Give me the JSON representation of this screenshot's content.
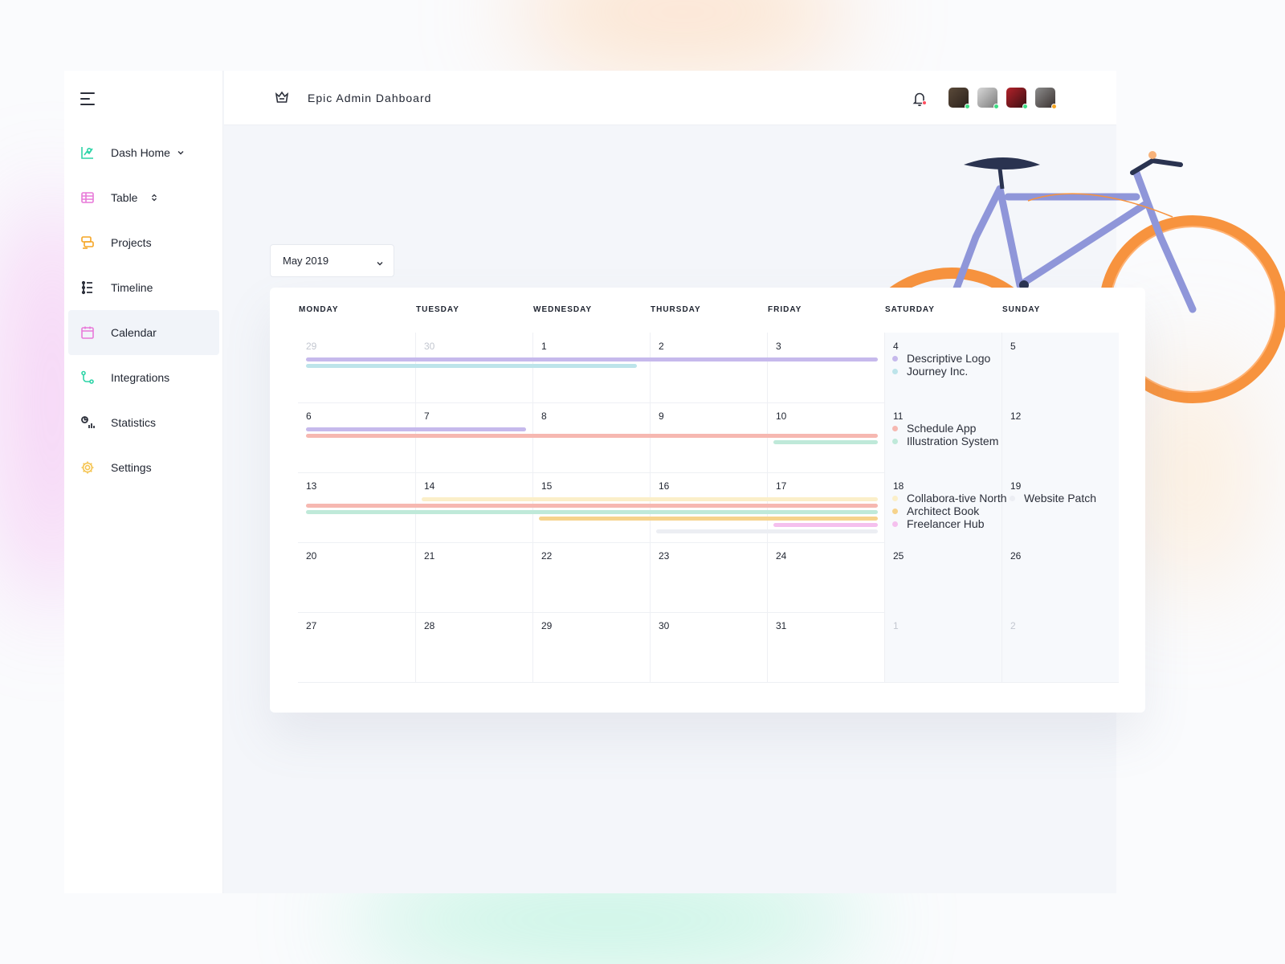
{
  "app": {
    "title": "Epic Admin Dahboard"
  },
  "sidebar": {
    "items": [
      {
        "label": "Dash Home",
        "icon": "chart-icon",
        "color": "#2dd4a7",
        "caret": "chevron-down"
      },
      {
        "label": "Table",
        "icon": "table-icon",
        "color": "#e879d9",
        "caret": "chevron-updown"
      },
      {
        "label": "Projects",
        "icon": "projects-icon",
        "color": "#f5a524"
      },
      {
        "label": "Timeline",
        "icon": "timeline-icon",
        "color": "#2b2f3a"
      },
      {
        "label": "Calendar",
        "icon": "calendar-icon",
        "color": "#e879d9",
        "active": true
      },
      {
        "label": "Integrations",
        "icon": "integrations-icon",
        "color": "#2dd4a7"
      },
      {
        "label": "Statistics",
        "icon": "statistics-icon",
        "color": "#2b2f3a"
      },
      {
        "label": "Settings",
        "icon": "gear-icon",
        "color": "#f5c451"
      }
    ]
  },
  "header": {
    "notifications_dot_color": "#ff4d5e",
    "avatars": [
      {
        "status_color": "#3ddc84"
      },
      {
        "status_color": "#3ddc84"
      },
      {
        "status_color": "#3ddc84"
      },
      {
        "status_color": "#f5a524"
      }
    ]
  },
  "calendar": {
    "selected_month": "May 2019",
    "weekdays": [
      "MONDAY",
      "TUESDAY",
      "WEDNESDAY",
      "THURSDAY",
      "FRIDAY",
      "SATURDAY",
      "SUNDAY"
    ],
    "weeks": [
      {
        "days": [
          {
            "n": "29",
            "muted": true
          },
          {
            "n": "30",
            "muted": true
          },
          {
            "n": "1"
          },
          {
            "n": "2"
          },
          {
            "n": "3"
          },
          {
            "n": "4"
          },
          {
            "n": "5"
          }
        ],
        "legend_sat": [
          {
            "label": "Descriptive Logo",
            "color": "#c6b9ec"
          },
          {
            "label": "Journey Inc.",
            "color": "#bde4ea"
          }
        ],
        "legend_sun": []
      },
      {
        "days": [
          {
            "n": "6"
          },
          {
            "n": "7"
          },
          {
            "n": "8"
          },
          {
            "n": "9"
          },
          {
            "n": "10"
          },
          {
            "n": "11"
          },
          {
            "n": "12"
          }
        ],
        "legend_sat": [
          {
            "label": "Schedule App",
            "color": "#f6b8b1"
          },
          {
            "label": "Illustration System",
            "color": "#bfe9d9"
          }
        ],
        "legend_sun": []
      },
      {
        "days": [
          {
            "n": "13"
          },
          {
            "n": "14"
          },
          {
            "n": "15"
          },
          {
            "n": "16"
          },
          {
            "n": "17"
          },
          {
            "n": "18"
          },
          {
            "n": "19"
          }
        ],
        "legend_sat": [
          {
            "label": "Collabora-tive North",
            "color": "#fbefc9"
          },
          {
            "label": "Architect Book",
            "color": "#f6d38c"
          },
          {
            "label": "Freelancer Hub",
            "color": "#f5c0ee"
          }
        ],
        "legend_sun": [
          {
            "label": "Website Patch",
            "color": "#eceef3"
          }
        ]
      },
      {
        "days": [
          {
            "n": "20"
          },
          {
            "n": "21"
          },
          {
            "n": "22"
          },
          {
            "n": "23"
          },
          {
            "n": "24"
          },
          {
            "n": "25"
          },
          {
            "n": "26"
          }
        ],
        "legend_sat": [],
        "legend_sun": []
      },
      {
        "days": [
          {
            "n": "27"
          },
          {
            "n": "28"
          },
          {
            "n": "29"
          },
          {
            "n": "30"
          },
          {
            "n": "31"
          },
          {
            "n": "1",
            "muted": true
          },
          {
            "n": "2",
            "muted": true
          }
        ],
        "legend_sat": [],
        "legend_sun": []
      }
    ],
    "events": [
      {
        "name": "Descriptive Logo",
        "color": "#c6b9ec",
        "week": 0,
        "start_day": 0,
        "end_day": 4
      },
      {
        "name": "Journey Inc.",
        "color": "#bde4ea",
        "week": 0,
        "start_day": 0,
        "end_day": 2
      },
      {
        "name": "Descriptive Logo",
        "color": "#c6b9ec",
        "week": 1,
        "start_day": 0,
        "end_day": 1
      },
      {
        "name": "Schedule App",
        "color": "#f6b8b1",
        "week": 1,
        "start_day": 0,
        "end_day": 4
      },
      {
        "name": "Illustration System",
        "color": "#bfe9d9",
        "week": 1,
        "start_day": 4,
        "end_day": 4
      },
      {
        "name": "Collabora-tive North",
        "color": "#fbefc9",
        "week": 2,
        "start_day": 1,
        "end_day": 4
      },
      {
        "name": "Schedule App",
        "color": "#f6b8b1",
        "week": 2,
        "start_day": 0,
        "end_day": 4
      },
      {
        "name": "Illustration System",
        "color": "#bfe9d9",
        "week": 2,
        "start_day": 0,
        "end_day": 4
      },
      {
        "name": "Architect Book",
        "color": "#f6d38c",
        "week": 2,
        "start_day": 2,
        "end_day": 4
      },
      {
        "name": "Freelancer Hub",
        "color": "#f5c0ee",
        "week": 2,
        "start_day": 4,
        "end_day": 4
      },
      {
        "name": "Website Patch",
        "color": "#eceef3",
        "week": 2,
        "start_day": 3,
        "end_day": 4
      }
    ]
  }
}
